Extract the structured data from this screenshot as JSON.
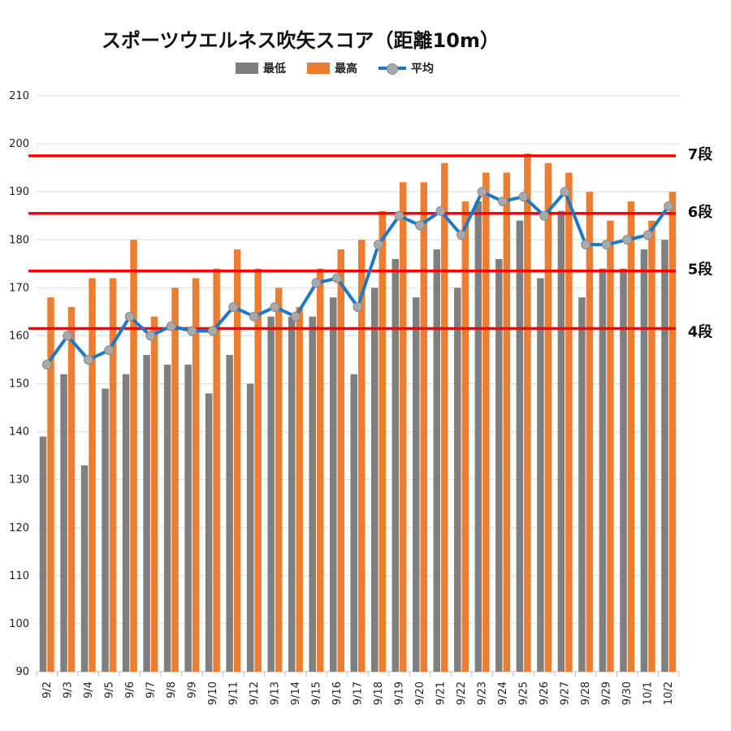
{
  "chart_data": {
    "type": "bar",
    "title": "スポーツウエルネス吹矢スコア（距離10m）",
    "categories": [
      "9/2",
      "9/3",
      "9/4",
      "9/5",
      "9/6",
      "9/7",
      "9/8",
      "9/9",
      "9/10",
      "9/11",
      "9/12",
      "9/13",
      "9/14",
      "9/15",
      "9/16",
      "9/17",
      "9/18",
      "9/19",
      "9/20",
      "9/21",
      "9/22",
      "9/23",
      "9/24",
      "9/25",
      "9/26",
      "9/27",
      "9/28",
      "9/29",
      "9/30",
      "10/1",
      "10/2"
    ],
    "series": [
      {
        "name": "最低",
        "type": "bar",
        "color": "#7f7f7f",
        "values": [
          139,
          152,
          133,
          149,
          152,
          156,
          154,
          154,
          148,
          156,
          150,
          164,
          164,
          164,
          168,
          152,
          170,
          176,
          168,
          178,
          170,
          188,
          176,
          184,
          172,
          186,
          168,
          174,
          174,
          178,
          180
        ]
      },
      {
        "name": "最高",
        "type": "bar",
        "color": "#ed7d31",
        "values": [
          168,
          166,
          172,
          172,
          180,
          164,
          170,
          172,
          174,
          178,
          174,
          170,
          166,
          174,
          178,
          180,
          186,
          192,
          192,
          196,
          188,
          194,
          194,
          198,
          196,
          194,
          190,
          184,
          188,
          184,
          190
        ]
      },
      {
        "name": "平均",
        "type": "line",
        "color": "#1f77c8",
        "marker_color": "#a9a9a9",
        "values": [
          154,
          160,
          155,
          157,
          164,
          160,
          162,
          161,
          161,
          166,
          164,
          166,
          164,
          171,
          172,
          166,
          179,
          185,
          183,
          186,
          181,
          190,
          188,
          189,
          185,
          190,
          179,
          179,
          180,
          181,
          187
        ]
      }
    ],
    "ylim": [
      90,
      210
    ],
    "yticks": [
      "90",
      "100",
      "110",
      "120",
      "130",
      "140",
      "150",
      "160",
      "170",
      "180",
      "190",
      "200",
      "210"
    ],
    "grid": "horizontal",
    "legend": "top",
    "reference_lines": [
      {
        "label": "7段",
        "value": 197.5,
        "color": "#ff0000"
      },
      {
        "label": "6段",
        "value": 185.5,
        "color": "#ff0000"
      },
      {
        "label": "5段",
        "value": 173.5,
        "color": "#ff0000"
      },
      {
        "label": "4段",
        "value": 161.5,
        "color": "#ff0000"
      }
    ]
  }
}
